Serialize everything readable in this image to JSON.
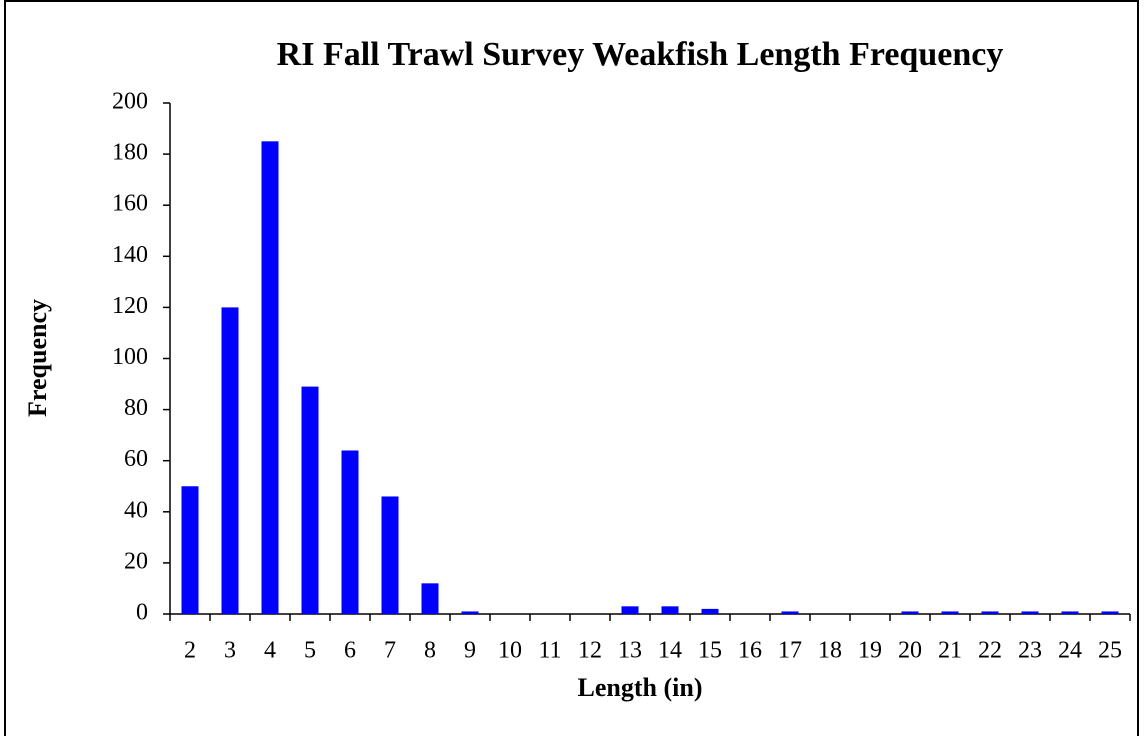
{
  "chart_data": {
    "type": "bar",
    "title": "RI Fall Trawl Survey Weakfish  Length Frequency",
    "x_label": "Length (in)",
    "y_label": "Frequency",
    "categories": [
      "2",
      "3",
      "4",
      "5",
      "6",
      "7",
      "8",
      "9",
      "10",
      "11",
      "12",
      "13",
      "14",
      "15",
      "16",
      "17",
      "18",
      "19",
      "20",
      "21",
      "22",
      "23",
      "24",
      "25"
    ],
    "values": [
      50,
      120,
      185,
      89,
      64,
      46,
      12,
      1,
      0,
      0,
      0,
      3,
      3,
      2,
      0,
      1,
      0,
      0,
      1,
      1,
      1,
      1,
      1,
      1
    ],
    "color": "#0000ff",
    "ylim": [
      0,
      200
    ],
    "yticks": [
      0,
      20,
      40,
      60,
      80,
      100,
      120,
      140,
      160,
      180,
      200
    ],
    "grid": false
  }
}
